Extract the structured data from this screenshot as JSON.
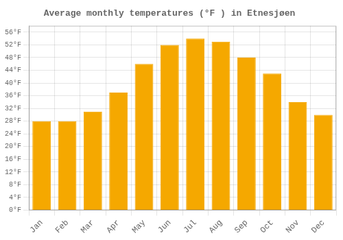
{
  "chart_data": {
    "type": "bar",
    "title": "Average monthly temperatures (°F ) in Etnesjøen",
    "categories": [
      "Jan",
      "Feb",
      "Mar",
      "Apr",
      "May",
      "Jun",
      "Jul",
      "Aug",
      "Sep",
      "Oct",
      "Nov",
      "Dec"
    ],
    "values": [
      28,
      28,
      31,
      37,
      46,
      52,
      54,
      53,
      48,
      43,
      34,
      30
    ],
    "color": "#F5A800",
    "ylim": [
      0,
      58
    ],
    "yticks": [
      {
        "value": 0,
        "label": "0°F"
      },
      {
        "value": 4,
        "label": "4°F"
      },
      {
        "value": 8,
        "label": "8°F"
      },
      {
        "value": 12,
        "label": "12°F"
      },
      {
        "value": 16,
        "label": "16°F"
      },
      {
        "value": 20,
        "label": "20°F"
      },
      {
        "value": 24,
        "label": "24°F"
      },
      {
        "value": 28,
        "label": "28°F"
      },
      {
        "value": 32,
        "label": "32°F"
      },
      {
        "value": 36,
        "label": "36°F"
      },
      {
        "value": 40,
        "label": "40°F"
      },
      {
        "value": 44,
        "label": "44°F"
      },
      {
        "value": 48,
        "label": "48°F"
      },
      {
        "value": 52,
        "label": "52°F"
      },
      {
        "value": 56,
        "label": "56°F"
      }
    ],
    "grid": true
  }
}
